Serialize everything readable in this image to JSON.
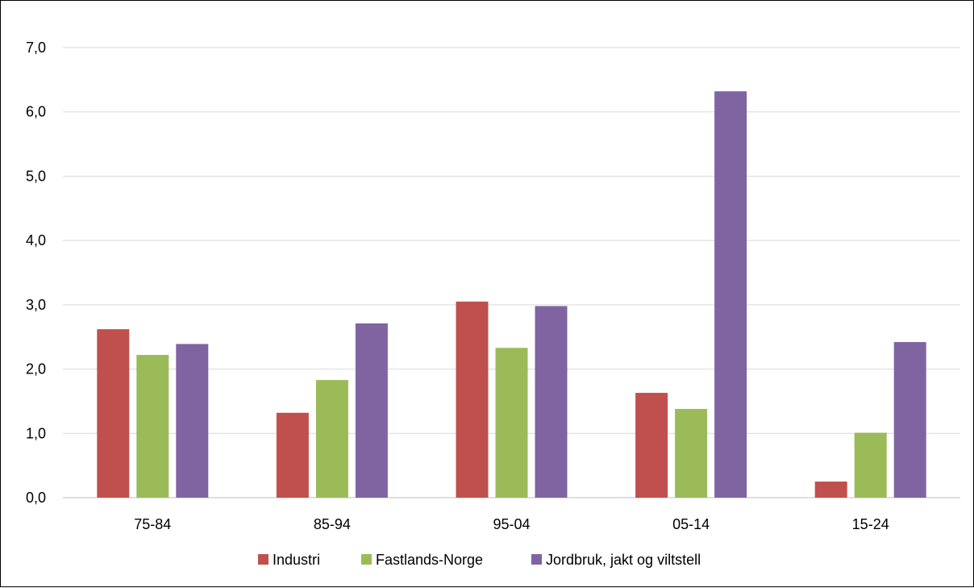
{
  "chart_data": {
    "type": "bar",
    "categories": [
      "75-84",
      "85-94",
      "95-04",
      "05-14",
      "15-24"
    ],
    "series": [
      {
        "name": "Industri",
        "color": "#c0504d",
        "values": [
          2.62,
          1.32,
          3.05,
          1.63,
          0.25
        ]
      },
      {
        "name": "Fastlands-Norge",
        "color": "#9bbb59",
        "values": [
          2.22,
          1.83,
          2.33,
          1.38,
          1.01
        ]
      },
      {
        "name": "Jordbruk, jakt og viltstell",
        "color": "#8064a2",
        "values": [
          2.39,
          2.71,
          2.98,
          6.32,
          2.42
        ]
      }
    ],
    "yticks": [
      "0,0",
      "1,0",
      "2,0",
      "3,0",
      "4,0",
      "5,0",
      "6,0",
      "7,0"
    ],
    "ylim": [
      0,
      7
    ],
    "grid": true,
    "legend_position": "bottom"
  }
}
